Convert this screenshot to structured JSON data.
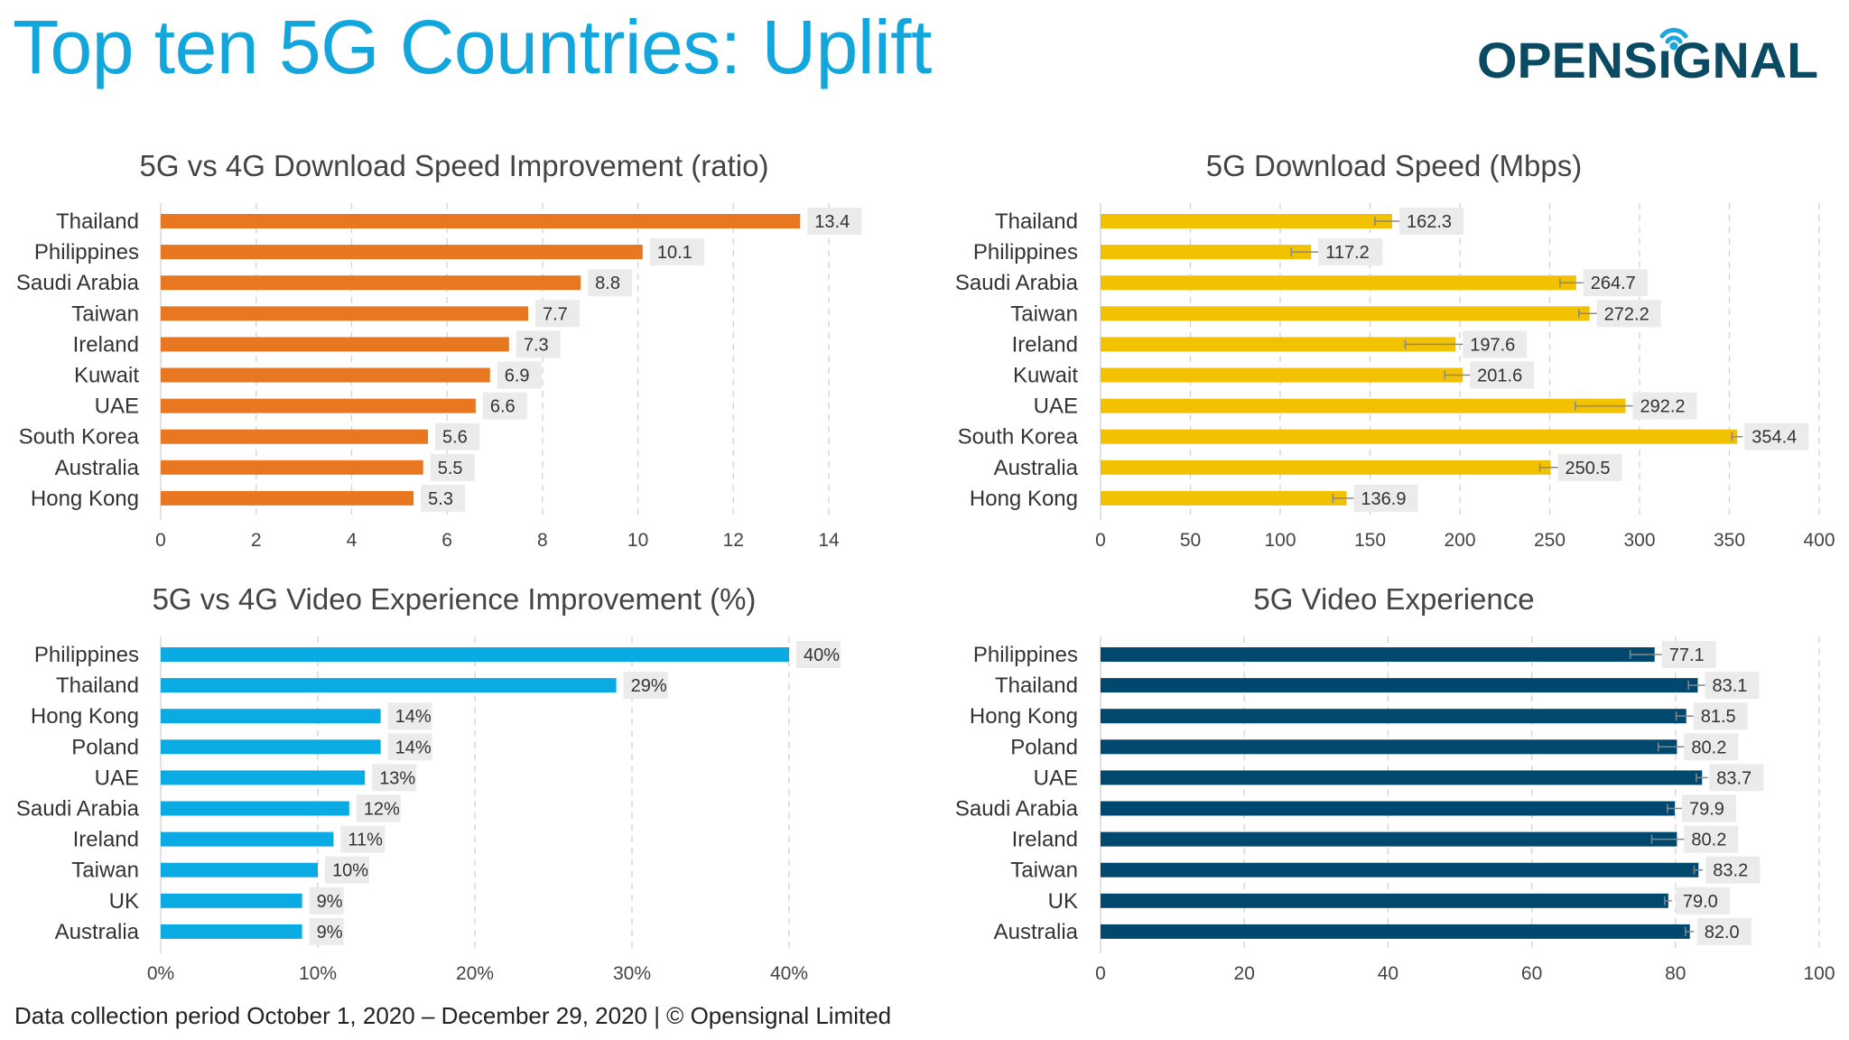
{
  "header": {
    "title": "Top ten 5G Countries: Uplift",
    "logo_text": "OPENSIGNAL"
  },
  "footer": "Data collection period October 1, 2020 – December 29, 2020  |  © Opensignal Limited",
  "colors": {
    "title": "#12a6dd",
    "logo": "#0b4a63",
    "logo_signal": "#1aa7dc",
    "label_box": "#ebebeb",
    "grid": "#d0d0d0"
  },
  "chart_data": [
    {
      "type": "bar",
      "orientation": "horizontal",
      "title": "5G vs 4G Download Speed Improvement (ratio)",
      "categories": [
        "Thailand",
        "Philippines",
        "Saudi Arabia",
        "Taiwan",
        "Ireland",
        "Kuwait",
        "UAE",
        "South Korea",
        "Australia",
        "Hong Kong"
      ],
      "values": [
        13.4,
        10.1,
        8.8,
        7.7,
        7.3,
        6.9,
        6.6,
        5.6,
        5.5,
        5.3
      ],
      "data_labels": [
        "13.4",
        "10.1",
        "8.8",
        "7.7",
        "7.3",
        "6.9",
        "6.6",
        "5.6",
        "5.5",
        "5.3"
      ],
      "xlim": [
        0,
        14
      ],
      "ticks": [
        0,
        2,
        4,
        6,
        8,
        10,
        12,
        14
      ],
      "tick_labels": [
        "0",
        "2",
        "4",
        "6",
        "8",
        "10",
        "12",
        "14"
      ],
      "grid": true,
      "color": "#e87722"
    },
    {
      "type": "bar",
      "orientation": "horizontal",
      "title": "5G Download Speed (Mbps)",
      "categories": [
        "Thailand",
        "Philippines",
        "Saudi Arabia",
        "Taiwan",
        "Ireland",
        "Kuwait",
        "UAE",
        "South Korea",
        "Australia",
        "Hong Kong"
      ],
      "values": [
        162.3,
        117.2,
        264.7,
        272.2,
        197.6,
        201.6,
        292.2,
        354.4,
        250.5,
        136.9
      ],
      "error": [
        9.6,
        11,
        9,
        6,
        28,
        10,
        28,
        3,
        6,
        7.6
      ],
      "data_labels": [
        "162.3",
        "117.2",
        "264.7",
        "272.2",
        "197.6",
        "201.6",
        "292.2",
        "354.4",
        "250.5",
        "136.9"
      ],
      "xlim": [
        0,
        400
      ],
      "ticks": [
        0,
        50,
        100,
        150,
        200,
        250,
        300,
        350,
        400
      ],
      "tick_labels": [
        "0",
        "50",
        "100",
        "150",
        "200",
        "250",
        "300",
        "350",
        "400"
      ],
      "grid": true,
      "color": "#f2c100"
    },
    {
      "type": "bar",
      "orientation": "horizontal",
      "title": "5G vs 4G Video Experience Improvement (%)",
      "categories": [
        "Philippines",
        "Thailand",
        "Hong Kong",
        "Poland",
        "UAE",
        "Saudi Arabia",
        "Ireland",
        "Taiwan",
        "UK",
        "Australia"
      ],
      "values": [
        40,
        29,
        14,
        14,
        13,
        12,
        11,
        10,
        9,
        9
      ],
      "data_labels": [
        "40%",
        "29%",
        "14%",
        "14%",
        "13%",
        "12%",
        "11%",
        "10%",
        "9%",
        "9%"
      ],
      "xlim": [
        0,
        40
      ],
      "ticks": [
        0,
        10,
        20,
        30,
        40
      ],
      "tick_labels": [
        "0%",
        "10%",
        "20%",
        "30%",
        "40%"
      ],
      "grid": true,
      "color": "#0aaae3"
    },
    {
      "type": "bar",
      "orientation": "horizontal",
      "title": "5G Video Experience",
      "categories": [
        "Philippines",
        "Thailand",
        "Hong Kong",
        "Poland",
        "UAE",
        "Saudi Arabia",
        "Ireland",
        "Taiwan",
        "UK",
        "Australia"
      ],
      "values": [
        77.1,
        83.1,
        81.5,
        80.2,
        83.7,
        79.9,
        80.2,
        83.2,
        79.0,
        82.0
      ],
      "error": [
        3.4,
        1.3,
        1.4,
        2.6,
        0.8,
        1,
        3.5,
        0.6,
        0.5,
        0.6
      ],
      "data_labels": [
        "77.1",
        "83.1",
        "81.5",
        "80.2",
        "83.7",
        "79.9",
        "80.2",
        "83.2",
        "79.0",
        "82.0"
      ],
      "xlim": [
        0,
        100
      ],
      "ticks": [
        0,
        20,
        40,
        60,
        80,
        100
      ],
      "tick_labels": [
        "0",
        "20",
        "40",
        "60",
        "80",
        "100"
      ],
      "grid": true,
      "color": "#00486e"
    }
  ]
}
